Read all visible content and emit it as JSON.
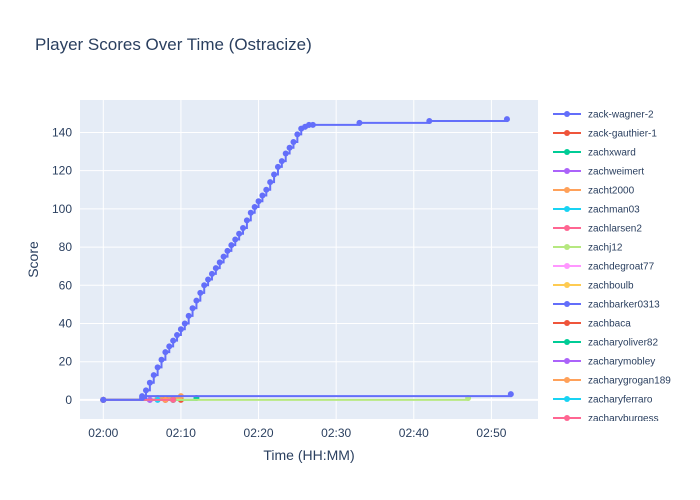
{
  "chart_data": {
    "type": "line",
    "title": "Player Scores Over Time (Ostracize)",
    "xlabel": "Time (HH:MM)",
    "ylabel": "Score",
    "x_unit": "HH:MM",
    "xlim": [
      "01:57",
      "02:56"
    ],
    "ylim": [
      -10,
      157
    ],
    "x_ticks": [
      "02:00",
      "02:10",
      "02:20",
      "02:30",
      "02:40",
      "02:50"
    ],
    "y_ticks": [
      0,
      20,
      40,
      60,
      80,
      100,
      120,
      140
    ],
    "grid": true,
    "legend_position": "right",
    "series": [
      {
        "name": "zack-wagner-2",
        "color": "#636efa",
        "x": [
          "02:00",
          "02:05",
          "02:05:30",
          "02:06",
          "02:06:30",
          "02:07",
          "02:07:30",
          "02:08",
          "02:08:30",
          "02:09",
          "02:09:30",
          "02:10",
          "02:10:30",
          "02:11",
          "02:11:30",
          "02:12",
          "02:12:30",
          "02:13",
          "02:13:30",
          "02:14",
          "02:14:30",
          "02:15",
          "02:15:30",
          "02:16",
          "02:16:30",
          "02:17",
          "02:17:30",
          "02:18",
          "02:18:30",
          "02:19",
          "02:19:30",
          "02:20",
          "02:20:30",
          "02:21",
          "02:21:30",
          "02:22",
          "02:22:30",
          "02:23",
          "02:23:30",
          "02:24",
          "02:24:30",
          "02:25",
          "02:25:30",
          "02:26",
          "02:26:30",
          "02:27",
          "02:33",
          "02:42",
          "02:52"
        ],
        "y": [
          0,
          1,
          5,
          9,
          13,
          17,
          21,
          25,
          28,
          31,
          34,
          37,
          40,
          44,
          48,
          52,
          56,
          60,
          63,
          66,
          69,
          72,
          75,
          78,
          81,
          84,
          87,
          90,
          94,
          98,
          101,
          104,
          107,
          110,
          114,
          118,
          122,
          125,
          129,
          132,
          135,
          139,
          142,
          143,
          144,
          144,
          145,
          146,
          147
        ]
      },
      {
        "name": "zack-gauthier-1",
        "color": "#ef553b",
        "x": [
          "02:00",
          "02:10"
        ],
        "y": [
          0,
          0
        ]
      },
      {
        "name": "zachxward",
        "color": "#00cc96",
        "x": [
          "02:00",
          "02:12"
        ],
        "y": [
          0,
          1
        ]
      },
      {
        "name": "zachweimert",
        "color": "#ab63fa",
        "x": [
          "02:00",
          "02:08"
        ],
        "y": [
          0,
          0
        ]
      },
      {
        "name": "zacht2000",
        "color": "#ffa15a",
        "x": [
          "02:00",
          "02:07",
          "02:10"
        ],
        "y": [
          0,
          1,
          2
        ]
      },
      {
        "name": "zachman03",
        "color": "#19d3f3",
        "x": [
          "02:00",
          "02:09"
        ],
        "y": [
          0,
          0
        ]
      },
      {
        "name": "zachlarsen2",
        "color": "#ff6692",
        "x": [
          "02:00",
          "02:06"
        ],
        "y": [
          0,
          0
        ]
      },
      {
        "name": "zachj12",
        "color": "#b6e880",
        "x": [
          "02:00",
          "02:47"
        ],
        "y": [
          0,
          1
        ]
      },
      {
        "name": "zachdegroat77",
        "color": "#ff97ff",
        "x": [
          "02:00",
          "02:07"
        ],
        "y": [
          0,
          0
        ]
      },
      {
        "name": "zachboulb",
        "color": "#fecb52",
        "x": [
          "02:00",
          "02:09"
        ],
        "y": [
          0,
          0
        ]
      },
      {
        "name": "zachbarker0313",
        "color": "#636efa",
        "x": [
          "02:00",
          "02:05",
          "02:52:30"
        ],
        "y": [
          0,
          2,
          3
        ]
      },
      {
        "name": "zachbaca",
        "color": "#ef553b",
        "x": [
          "02:00",
          "02:08"
        ],
        "y": [
          0,
          0
        ]
      },
      {
        "name": "zacharyoliver82",
        "color": "#00cc96",
        "x": [
          "02:00",
          "02:09"
        ],
        "y": [
          0,
          0
        ]
      },
      {
        "name": "zacharymobley",
        "color": "#ab63fa",
        "x": [
          "02:00",
          "02:06"
        ],
        "y": [
          0,
          0
        ]
      },
      {
        "name": "zacharygrogan189",
        "color": "#ffa15a",
        "x": [
          "02:00",
          "02:08"
        ],
        "y": [
          0,
          0
        ]
      },
      {
        "name": "zacharyferraro",
        "color": "#19d3f3",
        "x": [
          "02:00",
          "02:07"
        ],
        "y": [
          0,
          0
        ]
      },
      {
        "name": "zacharyburgess",
        "color": "#ff6692",
        "x": [
          "02:00",
          "02:09"
        ],
        "y": [
          0,
          0
        ]
      }
    ]
  }
}
